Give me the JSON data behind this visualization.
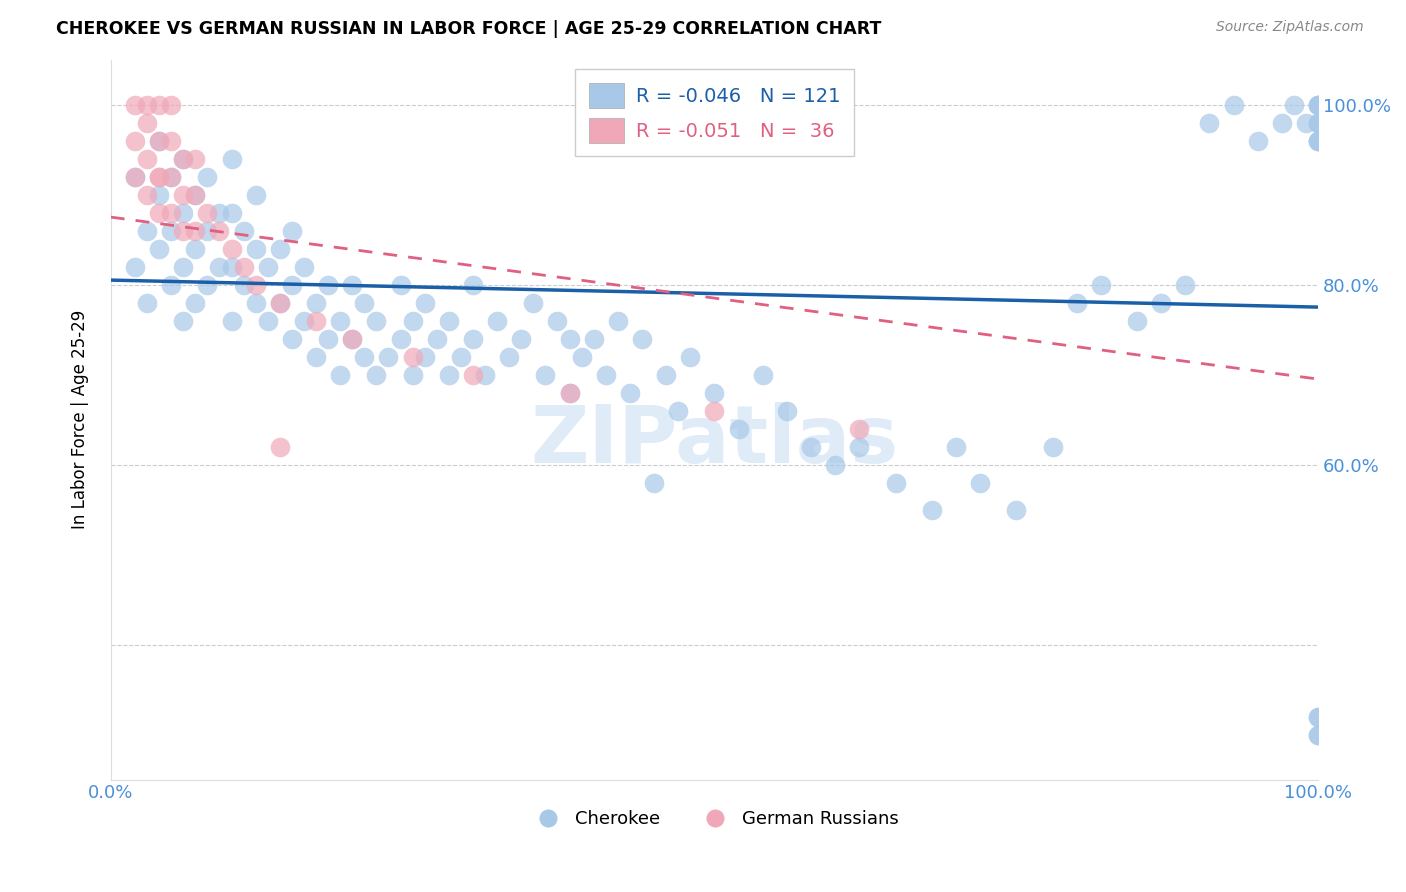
{
  "title": "CHEROKEE VS GERMAN RUSSIAN IN LABOR FORCE | AGE 25-29 CORRELATION CHART",
  "source": "Source: ZipAtlas.com",
  "ylabel": "In Labor Force | Age 25-29",
  "xlim": [
    0.0,
    1.0
  ],
  "ylim": [
    0.25,
    1.05
  ],
  "legend_blue_label": "Cherokee",
  "legend_pink_label": "German Russians",
  "R_blue": -0.046,
  "N_blue": 121,
  "R_pink": -0.051,
  "N_pink": 36,
  "blue_color": "#a8c8e8",
  "pink_color": "#f0a8b8",
  "blue_line_color": "#1a5fa8",
  "pink_line_color": "#e06080",
  "watermark": "ZIPatlas",
  "blue_scatter_x": [
    0.02,
    0.02,
    0.03,
    0.03,
    0.04,
    0.04,
    0.04,
    0.05,
    0.05,
    0.05,
    0.06,
    0.06,
    0.06,
    0.06,
    0.07,
    0.07,
    0.07,
    0.08,
    0.08,
    0.08,
    0.09,
    0.09,
    0.1,
    0.1,
    0.1,
    0.1,
    0.11,
    0.11,
    0.12,
    0.12,
    0.12,
    0.13,
    0.13,
    0.14,
    0.14,
    0.15,
    0.15,
    0.15,
    0.16,
    0.16,
    0.17,
    0.17,
    0.18,
    0.18,
    0.19,
    0.19,
    0.2,
    0.2,
    0.21,
    0.21,
    0.22,
    0.22,
    0.23,
    0.24,
    0.24,
    0.25,
    0.25,
    0.26,
    0.26,
    0.27,
    0.28,
    0.28,
    0.29,
    0.3,
    0.3,
    0.31,
    0.32,
    0.33,
    0.34,
    0.35,
    0.36,
    0.37,
    0.38,
    0.38,
    0.39,
    0.4,
    0.41,
    0.42,
    0.43,
    0.44,
    0.45,
    0.46,
    0.47,
    0.48,
    0.5,
    0.52,
    0.54,
    0.56,
    0.58,
    0.6,
    0.62,
    0.65,
    0.68,
    0.7,
    0.72,
    0.75,
    0.78,
    0.8,
    0.82,
    0.85,
    0.87,
    0.89,
    0.91,
    0.93,
    0.95,
    0.97,
    0.98,
    0.99,
    1.0,
    1.0,
    1.0,
    1.0,
    1.0,
    1.0,
    1.0,
    1.0,
    1.0,
    1.0,
    1.0,
    1.0,
    1.0
  ],
  "blue_scatter_y": [
    0.82,
    0.92,
    0.78,
    0.86,
    0.84,
    0.9,
    0.96,
    0.8,
    0.86,
    0.92,
    0.76,
    0.82,
    0.88,
    0.94,
    0.78,
    0.84,
    0.9,
    0.8,
    0.86,
    0.92,
    0.82,
    0.88,
    0.76,
    0.82,
    0.88,
    0.94,
    0.8,
    0.86,
    0.78,
    0.84,
    0.9,
    0.76,
    0.82,
    0.78,
    0.84,
    0.74,
    0.8,
    0.86,
    0.76,
    0.82,
    0.72,
    0.78,
    0.74,
    0.8,
    0.7,
    0.76,
    0.74,
    0.8,
    0.72,
    0.78,
    0.7,
    0.76,
    0.72,
    0.74,
    0.8,
    0.7,
    0.76,
    0.72,
    0.78,
    0.74,
    0.7,
    0.76,
    0.72,
    0.74,
    0.8,
    0.7,
    0.76,
    0.72,
    0.74,
    0.78,
    0.7,
    0.76,
    0.68,
    0.74,
    0.72,
    0.74,
    0.7,
    0.76,
    0.68,
    0.74,
    0.58,
    0.7,
    0.66,
    0.72,
    0.68,
    0.64,
    0.7,
    0.66,
    0.62,
    0.6,
    0.62,
    0.58,
    0.55,
    0.62,
    0.58,
    0.55,
    0.62,
    0.78,
    0.8,
    0.76,
    0.78,
    0.8,
    0.98,
    1.0,
    0.96,
    0.98,
    1.0,
    0.98,
    0.96,
    1.0,
    0.98,
    0.96,
    1.0,
    0.98,
    0.96,
    0.98,
    1.0,
    0.3,
    0.32,
    0.3,
    0.32
  ],
  "pink_scatter_x": [
    0.02,
    0.02,
    0.02,
    0.03,
    0.03,
    0.03,
    0.03,
    0.04,
    0.04,
    0.04,
    0.04,
    0.04,
    0.05,
    0.05,
    0.05,
    0.05,
    0.06,
    0.06,
    0.06,
    0.07,
    0.07,
    0.07,
    0.08,
    0.09,
    0.1,
    0.11,
    0.12,
    0.14,
    0.17,
    0.2,
    0.25,
    0.3,
    0.38,
    0.5,
    0.14,
    0.62
  ],
  "pink_scatter_y": [
    0.92,
    0.96,
    1.0,
    0.9,
    0.94,
    0.98,
    1.0,
    0.88,
    0.92,
    0.96,
    1.0,
    0.92,
    0.88,
    0.92,
    0.96,
    1.0,
    0.86,
    0.9,
    0.94,
    0.86,
    0.9,
    0.94,
    0.88,
    0.86,
    0.84,
    0.82,
    0.8,
    0.78,
    0.76,
    0.74,
    0.72,
    0.7,
    0.68,
    0.66,
    0.62,
    0.64
  ],
  "blue_line_start_y": 0.805,
  "blue_line_end_y": 0.775,
  "pink_line_start_y": 0.875,
  "pink_line_end_y": 0.695
}
